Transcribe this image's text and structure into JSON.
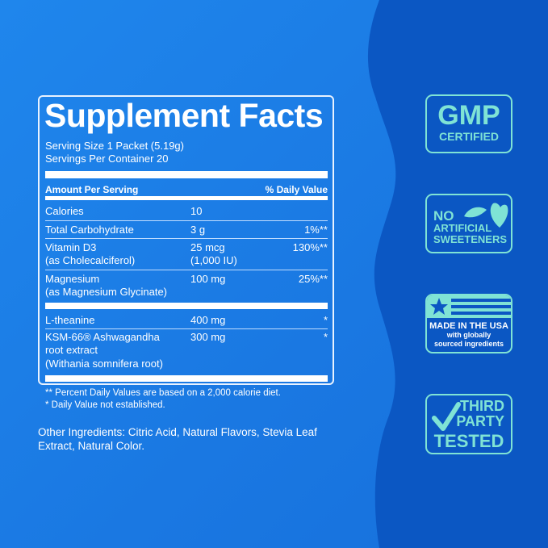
{
  "colors": {
    "background": "#1a7be6",
    "wave": "#0b57c3",
    "badge": "#7fe3d5"
  },
  "facts": {
    "title": "Supplement Facts",
    "serving_size": "Serving Size 1 Packet (5.19g)",
    "servings_per_container": "Servings Per Container 20",
    "header_amount": "Amount Per Serving",
    "header_dv": "% Daily Value",
    "rows": [
      {
        "name": "Calories",
        "amount": "10",
        "dv": ""
      },
      {
        "name": "Total Carbohydrate",
        "amount": "3 g",
        "dv": "1%**"
      },
      {
        "name": "Vitamin D3",
        "name2": "(as Cholecalciferol)",
        "amount": "25 mcg",
        "amount2": "(1,000 IU)",
        "dv": "130%**"
      },
      {
        "name": "Magnesium",
        "name2": "(as Magnesium Glycinate)",
        "amount": "100 mg",
        "dv": "25%**"
      },
      {
        "name": "L-theanine",
        "amount": "400 mg",
        "dv": "*"
      },
      {
        "name": "KSM-66® Ashwagandha",
        "name2": "root extract",
        "name3": "(Withania somnifera root)",
        "amount": "300 mg",
        "dv": "*"
      }
    ],
    "footnote1": "** Percent Daily Values are based on a 2,000 calorie diet.",
    "footnote2": "* Daily Value not established."
  },
  "other_ingredients": [
    "Other Ingredients: Citric Acid, Natural Flavors, Stevia Leaf",
    "Extract, Natural Color."
  ],
  "badges": {
    "gmp": {
      "big": "GMP",
      "small": "CERTIFIED",
      "icon": "none"
    },
    "sweeteners": {
      "l1": "NO",
      "l2": "ARTIFICIAL",
      "l3": "SWEETENERS",
      "icon": "stevia-leaf-icon"
    },
    "usa": {
      "l1": "MADE IN THE USA",
      "l2": "with globally",
      "l3": "sourced ingredients",
      "icon": "flag-icon"
    },
    "tested": {
      "l1": "THIRD",
      "l2": "PARTY",
      "l3": "TESTED",
      "icon": "checkmark-icon"
    }
  }
}
